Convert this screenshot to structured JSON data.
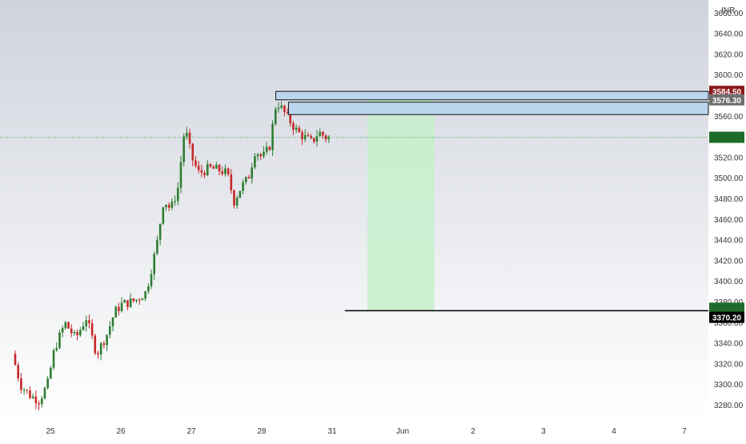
{
  "colors": {
    "background_top": "#cfd3dc",
    "background_bottom": "#ffffff",
    "bull": "#26a69a",
    "bear": "#ef5350",
    "candle_bull": "#2e7d32",
    "candle_bear": "#c62828",
    "zone_fill": "#bbd6ee",
    "zone_stroke": "#111111",
    "target_fill": "#c8efcc",
    "price_line": "#43a047",
    "support_line": "#000000",
    "badge_dark": "#000000",
    "badge_red": "#8b1a1a",
    "badge_grey": "#6f6f6f",
    "badge_green": "#1f6b2a"
  },
  "chart_data": {
    "type": "candlestick",
    "currency": "INR",
    "ylim": [
      3264,
      3676
    ],
    "y_ticks": [
      3280,
      3300,
      3320,
      3340,
      3360,
      3380,
      3400,
      3420,
      3440,
      3460,
      3480,
      3500,
      3520,
      3540,
      3560,
      3580,
      3600,
      3620,
      3640,
      3660
    ],
    "y_tick_labels": [
      "3280.00",
      "3300.00",
      "3320.00",
      "3340.00",
      "3360.00",
      "3380.00",
      "3400.00",
      "3420.00",
      "3440.00",
      "3460.00",
      "3480.00",
      "3500.00",
      "3520.00",
      "3540.00",
      "3560.00",
      "3580.00",
      "3600.00",
      "3620.00",
      "3640.00",
      "3660.00"
    ],
    "x_axis": {
      "unit": "day",
      "range": [
        24.5,
        32.9
      ],
      "ticks": [
        {
          "value": 25,
          "label": "25"
        },
        {
          "value": 26,
          "label": "26"
        },
        {
          "value": 27,
          "label": "27"
        },
        {
          "value": 28,
          "label": "28"
        },
        {
          "value": 29,
          "label": "31"
        },
        {
          "value": 30,
          "label": "Jun"
        },
        {
          "value": 31,
          "label": "2"
        },
        {
          "value": 32,
          "label": "3"
        },
        {
          "value": 33,
          "label": "4"
        },
        {
          "value": 34,
          "label": "7"
        }
      ]
    },
    "current_price": 3540,
    "zones": [
      {
        "from": 3576.3,
        "to": 3584.5,
        "x_start": 28.2
      },
      {
        "from": 3562,
        "to": 3574,
        "x_start": 28.38
      }
    ],
    "target_box": {
      "x_from": 29.5,
      "x_to": 30.45,
      "y_from": 3372,
      "y_to": 3578
    },
    "support_line": {
      "value": 3372,
      "x_start": 29.18
    },
    "price_badges": [
      {
        "value": 3584.5,
        "label": "3584.50",
        "style": "red"
      },
      {
        "value": 3576.3,
        "label": "3576.30",
        "style": "grey"
      },
      {
        "value": 3370.2,
        "label": "3370.20",
        "style": "dark"
      }
    ]
  }
}
